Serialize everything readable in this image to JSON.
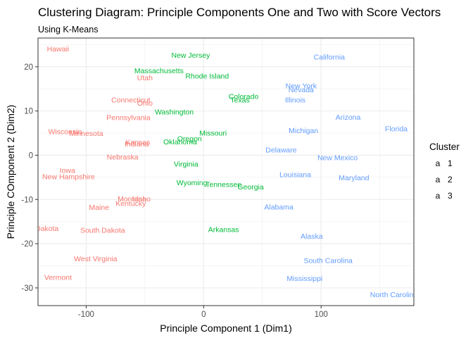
{
  "chart_data": {
    "type": "scatter",
    "title": "Clustering Diagram: Principle Components One and Two with Score Vectors",
    "subtitle": "Using K-Means",
    "xlabel": "Principle Component 1 (Dim1)",
    "ylabel": "Principle COmponent 2 (Dim2)",
    "xlim": [
      -141,
      179
    ],
    "ylim": [
      -34,
      26.5
    ],
    "xticks": [
      -100,
      0,
      100
    ],
    "yticks": [
      -30,
      -20,
      -10,
      0,
      10,
      20
    ],
    "grid": true,
    "legend": {
      "title": "Cluster",
      "placement": "right",
      "items": [
        {
          "key": "a",
          "label": "1",
          "color": "#F8766D"
        },
        {
          "key": "a",
          "label": "2",
          "color": "#00BA38"
        },
        {
          "key": "a",
          "label": "3",
          "color": "#619CFF"
        }
      ]
    },
    "colors": {
      "1": "#F8766D",
      "2": "#00BA38",
      "3": "#619CFF"
    },
    "points": [
      {
        "label": "Hawaii",
        "x": -124,
        "y": 24,
        "cluster": "1"
      },
      {
        "label": "Utah",
        "x": -50,
        "y": 17.5,
        "cluster": "1"
      },
      {
        "label": "Connecticut",
        "x": -62,
        "y": 12.5,
        "cluster": "1"
      },
      {
        "label": "Ohio",
        "x": -50,
        "y": 11.8,
        "cluster": "1"
      },
      {
        "label": "Pennsylvania",
        "x": -64,
        "y": 8.5,
        "cluster": "1"
      },
      {
        "label": "Wisconsin",
        "x": -118,
        "y": 5.3,
        "cluster": "1"
      },
      {
        "label": "Minnesota",
        "x": -100,
        "y": 4.9,
        "cluster": "1"
      },
      {
        "label": "Kansas",
        "x": -56,
        "y": 2.9,
        "cluster": "1"
      },
      {
        "label": "Indiana",
        "x": -57,
        "y": 2.5,
        "cluster": "1"
      },
      {
        "label": "Nebraska",
        "x": -69,
        "y": -0.4,
        "cluster": "1"
      },
      {
        "label": "Iowa",
        "x": -116,
        "y": -3.4,
        "cluster": "1"
      },
      {
        "label": "New Hampshire",
        "x": -115,
        "y": -4.9,
        "cluster": "1"
      },
      {
        "label": "Montana",
        "x": -61,
        "y": -9.9,
        "cluster": "1"
      },
      {
        "label": "Idaho",
        "x": -53,
        "y": -9.9,
        "cluster": "1"
      },
      {
        "label": "Kentucky",
        "x": -62,
        "y": -10.9,
        "cluster": "1"
      },
      {
        "label": "Maine",
        "x": -89,
        "y": -11.8,
        "cluster": "1"
      },
      {
        "label": "North Dakota",
        "x": -142,
        "y": -16.6,
        "cluster": "1"
      },
      {
        "label": "South Dakota",
        "x": -86,
        "y": -17.0,
        "cluster": "1"
      },
      {
        "label": "West Virginia",
        "x": -92,
        "y": -23.4,
        "cluster": "1"
      },
      {
        "label": "Vermont",
        "x": -124,
        "y": -27.6,
        "cluster": "1"
      },
      {
        "label": "New Jersey",
        "x": -11,
        "y": 22.6,
        "cluster": "2"
      },
      {
        "label": "Massachusetts",
        "x": -38,
        "y": 19.1,
        "cluster": "2"
      },
      {
        "label": "Rhode Island",
        "x": 3,
        "y": 17.9,
        "cluster": "2"
      },
      {
        "label": "Colorado",
        "x": 34,
        "y": 13.3,
        "cluster": "2"
      },
      {
        "label": "Texas",
        "x": 31,
        "y": 12.5,
        "cluster": "2"
      },
      {
        "label": "Washington",
        "x": -25,
        "y": 9.8,
        "cluster": "2"
      },
      {
        "label": "Missouri",
        "x": 8,
        "y": 5.0,
        "cluster": "2"
      },
      {
        "label": "Oregon",
        "x": -12,
        "y": 3.7,
        "cluster": "2"
      },
      {
        "label": "Oklahoma",
        "x": -20,
        "y": 3.0,
        "cluster": "2"
      },
      {
        "label": "Virginia",
        "x": -15,
        "y": -2.0,
        "cluster": "2"
      },
      {
        "label": "Wyoming",
        "x": -10,
        "y": -6.2,
        "cluster": "2"
      },
      {
        "label": "Tennessee",
        "x": 17,
        "y": -6.6,
        "cluster": "2"
      },
      {
        "label": "Georgia",
        "x": 40,
        "y": -7.2,
        "cluster": "2"
      },
      {
        "label": "Arkansas",
        "x": 17,
        "y": -16.8,
        "cluster": "2"
      },
      {
        "label": "California",
        "x": 107,
        "y": 22.2,
        "cluster": "3"
      },
      {
        "label": "New York",
        "x": 83,
        "y": 15.7,
        "cluster": "3"
      },
      {
        "label": "Nevada",
        "x": 83,
        "y": 14.8,
        "cluster": "3"
      },
      {
        "label": "Illinois",
        "x": 78,
        "y": 12.5,
        "cluster": "3"
      },
      {
        "label": "Arizona",
        "x": 123,
        "y": 8.6,
        "cluster": "3"
      },
      {
        "label": "Florida",
        "x": 164,
        "y": 6.0,
        "cluster": "3"
      },
      {
        "label": "Michigan",
        "x": 85,
        "y": 5.6,
        "cluster": "3"
      },
      {
        "label": "Delaware",
        "x": 66,
        "y": 1.2,
        "cluster": "3"
      },
      {
        "label": "New Mexico",
        "x": 114,
        "y": -0.6,
        "cluster": "3"
      },
      {
        "label": "Louisiana",
        "x": 78,
        "y": -4.4,
        "cluster": "3"
      },
      {
        "label": "Maryland",
        "x": 128,
        "y": -5.1,
        "cluster": "3"
      },
      {
        "label": "Alabama",
        "x": 64,
        "y": -11.7,
        "cluster": "3"
      },
      {
        "label": "Alaska",
        "x": 92,
        "y": -18.3,
        "cluster": "3"
      },
      {
        "label": "South Carolina",
        "x": 106,
        "y": -23.8,
        "cluster": "3"
      },
      {
        "label": "Mississippi",
        "x": 86,
        "y": -27.9,
        "cluster": "3"
      },
      {
        "label": "North Carolina",
        "x": 162,
        "y": -31.5,
        "cluster": "3"
      }
    ]
  }
}
